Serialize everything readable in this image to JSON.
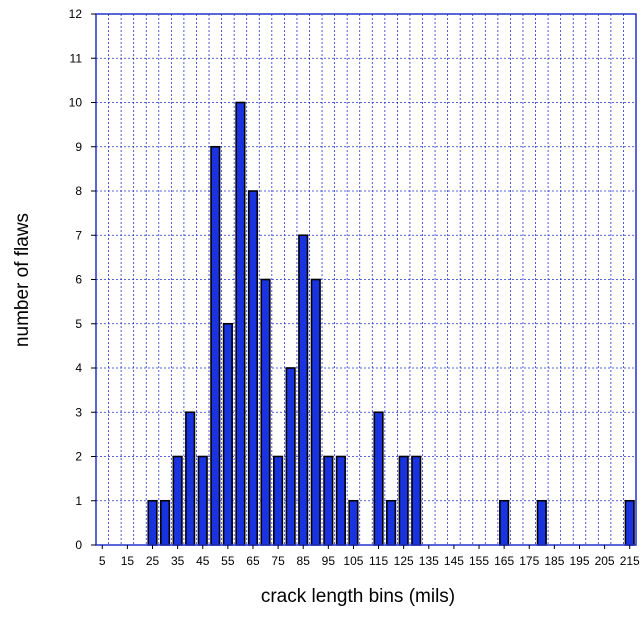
{
  "chart_data": {
    "type": "bar",
    "xlabel": "crack length bins (mils)",
    "ylabel": "number of flaws",
    "ylim": [
      0,
      12
    ],
    "yticks": [
      0,
      1,
      2,
      3,
      4,
      5,
      6,
      7,
      8,
      9,
      10,
      11,
      12
    ],
    "xtick_labels": [
      "5",
      "15",
      "25",
      "35",
      "45",
      "55",
      "65",
      "75",
      "85",
      "95",
      "105",
      "115",
      "125",
      "135",
      "145",
      "155",
      "165",
      "175",
      "185",
      "195",
      "205",
      "215"
    ],
    "grid": true,
    "bar_color": "#1a33e0",
    "grid_color": "#2233cc",
    "categories": [
      "5",
      "10",
      "15",
      "20",
      "25",
      "30",
      "35",
      "40",
      "45",
      "50",
      "55",
      "60",
      "65",
      "70",
      "75",
      "80",
      "85",
      "90",
      "95",
      "100",
      "105",
      "110",
      "115",
      "120",
      "125",
      "130",
      "135",
      "140",
      "145",
      "150",
      "155",
      "160",
      "165",
      "170",
      "175",
      "180",
      "185",
      "190",
      "195",
      "200",
      "205",
      "210",
      "215"
    ],
    "values": [
      0,
      0,
      0,
      0,
      1,
      1,
      2,
      3,
      2,
      9,
      5,
      10,
      8,
      6,
      2,
      4,
      7,
      6,
      2,
      2,
      1,
      0,
      3,
      1,
      2,
      2,
      0,
      0,
      0,
      0,
      0,
      0,
      1,
      0,
      0,
      1,
      0,
      0,
      0,
      0,
      0,
      0,
      1
    ]
  }
}
